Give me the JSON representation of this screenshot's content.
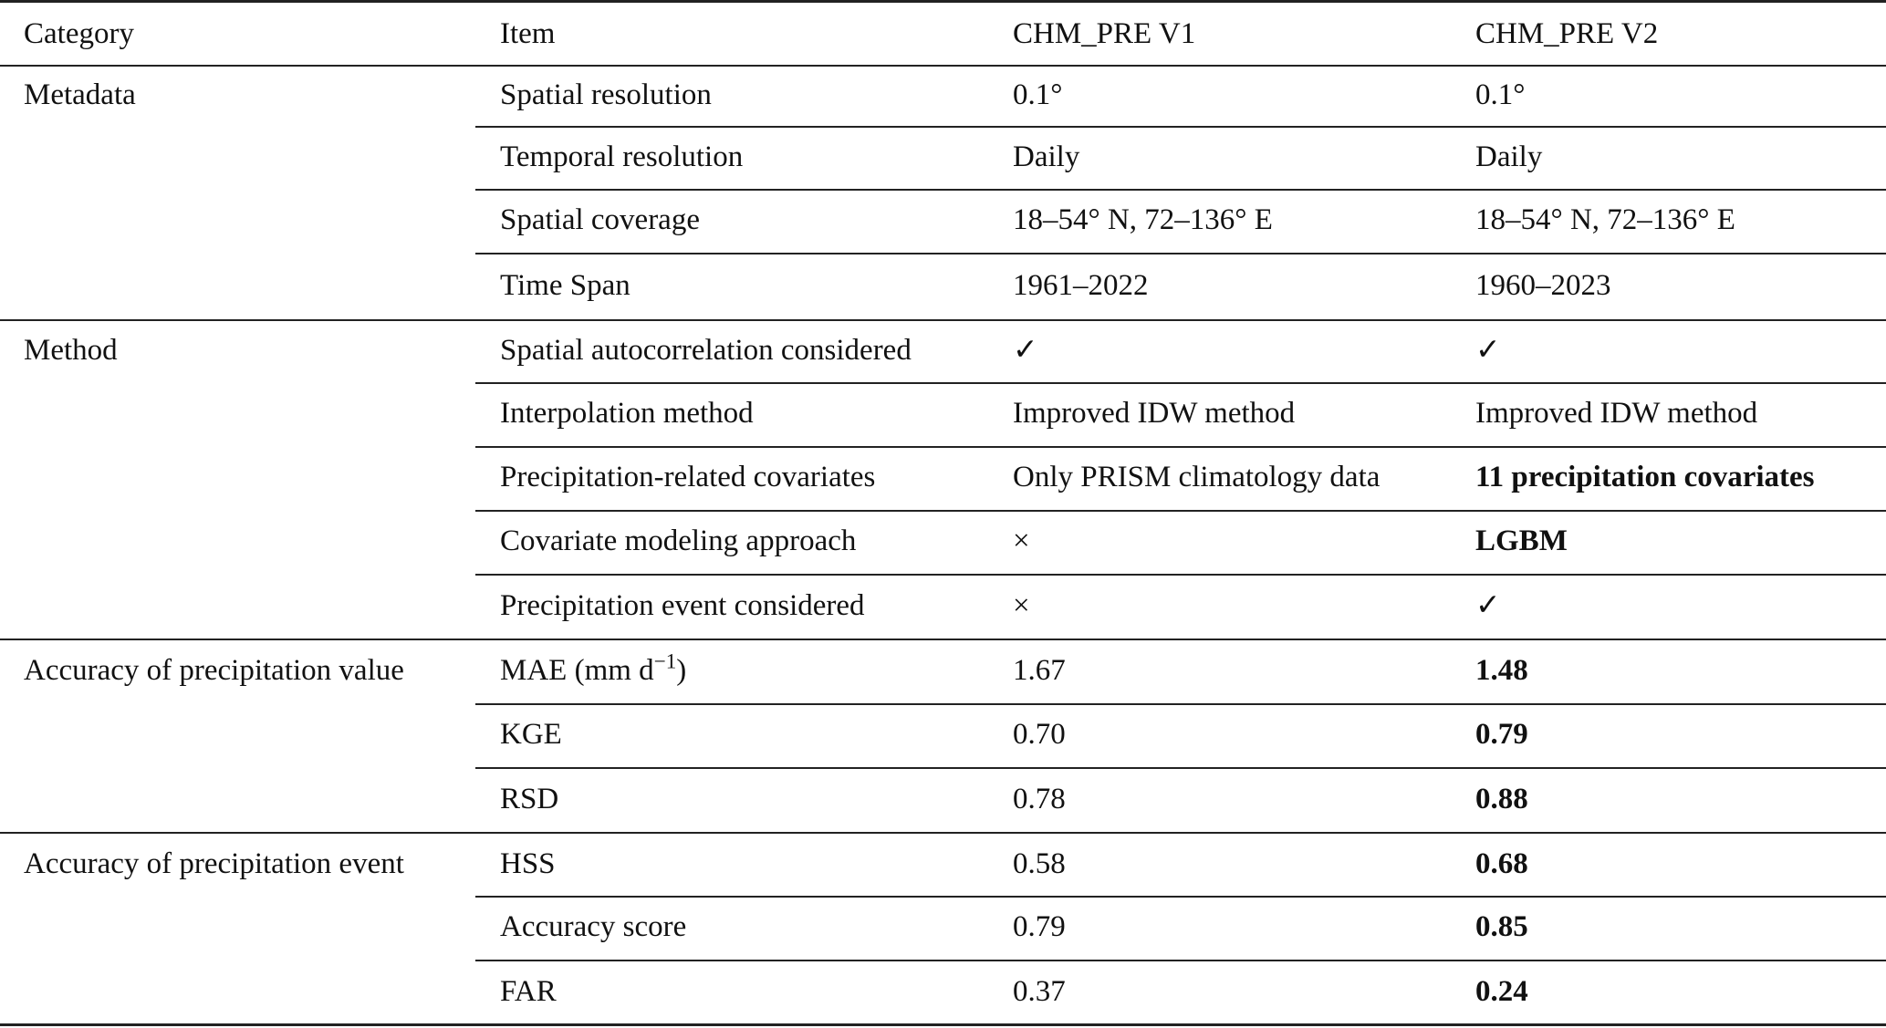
{
  "table": {
    "header": [
      "Category",
      "Item",
      "CHM_PRE V1",
      "CHM_PRE V2"
    ],
    "sections": [
      {
        "category": "Metadata",
        "rows": [
          {
            "item": "Spatial resolution",
            "v1": "0.1°",
            "v2": "0.1°"
          },
          {
            "item": "Temporal resolution",
            "v1": "Daily",
            "v2": "Daily"
          },
          {
            "item": "Spatial coverage",
            "v1": "18–54° N, 72–136° E",
            "v2": "18–54° N, 72–136° E"
          },
          {
            "item": "Time Span",
            "v1": "1961–2022",
            "v2": "1960–2023"
          }
        ]
      },
      {
        "category": "Method",
        "rows": [
          {
            "item": "Spatial autocorrelation considered",
            "v1": "✓",
            "v2": "✓"
          },
          {
            "item": "Interpolation method",
            "v1": "Improved IDW method",
            "v2": "Improved IDW method"
          },
          {
            "item": "Precipitation-related covariates",
            "v1": "Only PRISM climatology data",
            "v2": "11 precipitation covariates",
            "v2_bold": true
          },
          {
            "item": "Covariate modeling approach",
            "v1": "×",
            "v2": "LGBM",
            "v2_bold": true
          },
          {
            "item": "Precipitation event considered",
            "v1": "×",
            "v2": "✓"
          }
        ]
      },
      {
        "category": "Accuracy of precipitation value",
        "rows": [
          {
            "item": "MAE (mm d",
            "item_sup": "−1",
            "item_suffix": ")",
            "v1": "1.67",
            "v2": "1.48",
            "v2_bold": true
          },
          {
            "item": "KGE",
            "v1": "0.70",
            "v2": "0.79",
            "v2_bold": true
          },
          {
            "item": "RSD",
            "v1": "0.78",
            "v2": "0.88",
            "v2_bold": true
          }
        ]
      },
      {
        "category": "Accuracy of precipitation event",
        "rows": [
          {
            "item": "HSS",
            "v1": "0.58",
            "v2": "0.68",
            "v2_bold": true
          },
          {
            "item": "Accuracy score",
            "v1": "0.79",
            "v2": "0.85",
            "v2_bold": true
          },
          {
            "item": "FAR",
            "v1": "0.37",
            "v2": "0.24",
            "v2_bold": true
          }
        ]
      }
    ]
  }
}
